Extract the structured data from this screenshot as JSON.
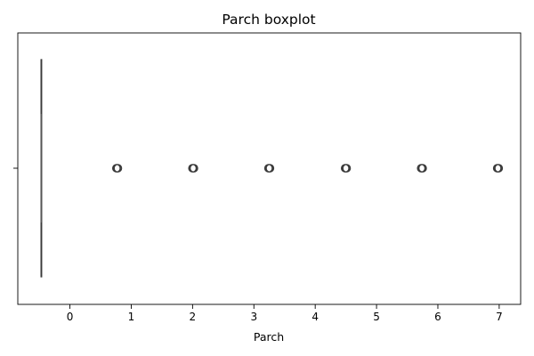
{
  "chart_data": {
    "type": "boxplot",
    "title": "Parch boxplot",
    "xlabel": "Parch",
    "ylabel": "",
    "orientation": "horizontal",
    "xlim": [
      -0.85,
      7.35
    ],
    "xticks": [
      0,
      1,
      2,
      3,
      4,
      5,
      6,
      7
    ],
    "xtick_labels": [
      "0",
      "1",
      "2",
      "3",
      "4",
      "5",
      "6",
      "7"
    ],
    "grid": false,
    "legend": "none",
    "box": {
      "min": -0.47,
      "q1": -0.47,
      "median": -0.47,
      "q3": -0.47,
      "max": -0.47
    },
    "outliers": [
      0.77,
      2.01,
      3.25,
      4.5,
      5.74,
      6.98
    ],
    "colors": {
      "outlier_stroke": "#3a3a3a",
      "box_line": "#3a3a3a",
      "box_fill": "#3a76af",
      "axis": "#000000"
    }
  }
}
